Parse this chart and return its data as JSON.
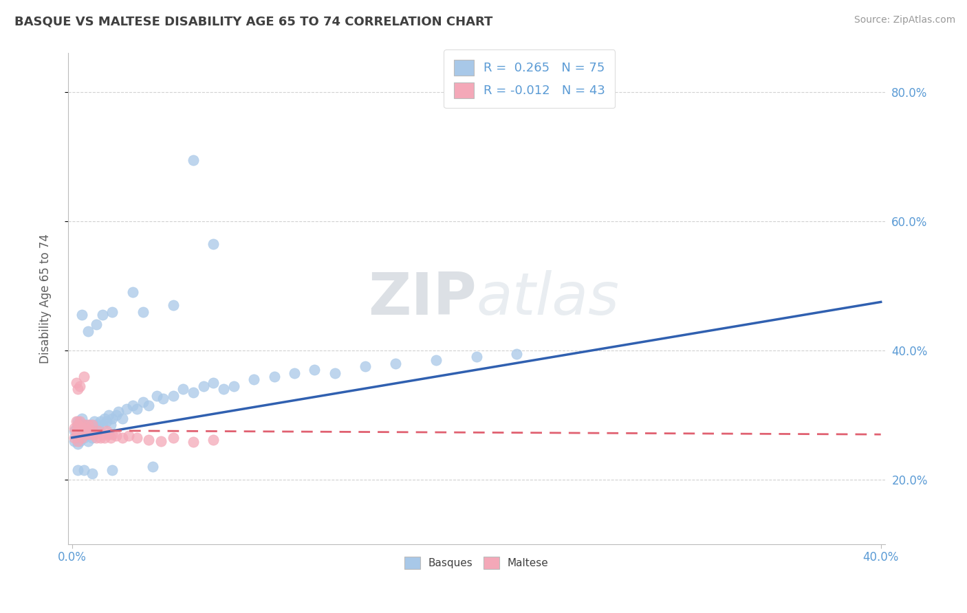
{
  "title": "BASQUE VS MALTESE DISABILITY AGE 65 TO 74 CORRELATION CHART",
  "source_text": "Source: ZipAtlas.com",
  "ylabel": "Disability Age 65 to 74",
  "xlim": [
    -0.002,
    0.402
  ],
  "ylim": [
    0.1,
    0.86
  ],
  "xticks": [
    0.0,
    0.4
  ],
  "xtick_labels": [
    "0.0%",
    "40.0%"
  ],
  "yticks_right": [
    0.2,
    0.4,
    0.6,
    0.8
  ],
  "ytick_labels_right": [
    "20.0%",
    "40.0%",
    "60.0%",
    "80.0%"
  ],
  "basque_color": "#A8C8E8",
  "maltese_color": "#F4A8B8",
  "basque_line_color": "#3060B0",
  "maltese_line_color": "#E06070",
  "R_basque": 0.265,
  "N_basque": 75,
  "R_maltese": -0.012,
  "N_maltese": 43,
  "background_color": "#FFFFFF",
  "grid_color": "#CCCCCC",
  "title_color": "#404040",
  "axis_label_color": "#606060",
  "tick_color": "#5B9BD5",
  "basque_x": [
    0.001,
    0.001,
    0.002,
    0.002,
    0.003,
    0.003,
    0.003,
    0.004,
    0.004,
    0.005,
    0.005,
    0.005,
    0.006,
    0.006,
    0.007,
    0.007,
    0.008,
    0.008,
    0.009,
    0.009,
    0.01,
    0.01,
    0.011,
    0.012,
    0.012,
    0.013,
    0.014,
    0.015,
    0.016,
    0.017,
    0.018,
    0.019,
    0.02,
    0.022,
    0.023,
    0.025,
    0.027,
    0.03,
    0.032,
    0.035,
    0.038,
    0.042,
    0.045,
    0.05,
    0.055,
    0.06,
    0.065,
    0.07,
    0.075,
    0.08,
    0.09,
    0.1,
    0.11,
    0.12,
    0.13,
    0.145,
    0.16,
    0.18,
    0.2,
    0.22,
    0.06,
    0.005,
    0.03,
    0.015,
    0.008,
    0.012,
    0.02,
    0.035,
    0.05,
    0.07,
    0.003,
    0.006,
    0.01,
    0.02,
    0.04
  ],
  "basque_y": [
    0.275,
    0.26,
    0.28,
    0.27,
    0.29,
    0.265,
    0.255,
    0.275,
    0.26,
    0.285,
    0.27,
    0.295,
    0.265,
    0.28,
    0.275,
    0.285,
    0.26,
    0.27,
    0.275,
    0.285,
    0.28,
    0.265,
    0.29,
    0.275,
    0.285,
    0.28,
    0.29,
    0.285,
    0.295,
    0.29,
    0.3,
    0.285,
    0.295,
    0.3,
    0.305,
    0.295,
    0.31,
    0.315,
    0.31,
    0.32,
    0.315,
    0.33,
    0.325,
    0.33,
    0.34,
    0.335,
    0.345,
    0.35,
    0.34,
    0.345,
    0.355,
    0.36,
    0.365,
    0.37,
    0.365,
    0.375,
    0.38,
    0.385,
    0.39,
    0.395,
    0.695,
    0.455,
    0.49,
    0.455,
    0.43,
    0.44,
    0.46,
    0.46,
    0.47,
    0.565,
    0.215,
    0.215,
    0.21,
    0.215,
    0.22
  ],
  "maltese_x": [
    0.001,
    0.001,
    0.002,
    0.002,
    0.003,
    0.003,
    0.003,
    0.004,
    0.004,
    0.005,
    0.005,
    0.006,
    0.006,
    0.007,
    0.007,
    0.008,
    0.008,
    0.009,
    0.01,
    0.01,
    0.011,
    0.012,
    0.013,
    0.014,
    0.015,
    0.016,
    0.017,
    0.018,
    0.019,
    0.02,
    0.022,
    0.025,
    0.028,
    0.032,
    0.038,
    0.044,
    0.05,
    0.06,
    0.07,
    0.002,
    0.003,
    0.004,
    0.006
  ],
  "maltese_y": [
    0.28,
    0.265,
    0.29,
    0.275,
    0.27,
    0.285,
    0.26,
    0.275,
    0.29,
    0.28,
    0.265,
    0.275,
    0.285,
    0.27,
    0.28,
    0.275,
    0.285,
    0.27,
    0.275,
    0.285,
    0.27,
    0.265,
    0.275,
    0.265,
    0.27,
    0.265,
    0.275,
    0.27,
    0.265,
    0.27,
    0.268,
    0.265,
    0.268,
    0.265,
    0.262,
    0.26,
    0.265,
    0.258,
    0.262,
    0.35,
    0.34,
    0.345,
    0.36
  ],
  "basque_trendline_x": [
    0.0,
    0.4
  ],
  "basque_trendline_y": [
    0.265,
    0.475
  ],
  "maltese_trendline_x": [
    0.0,
    0.4
  ],
  "maltese_trendline_y": [
    0.276,
    0.27
  ]
}
